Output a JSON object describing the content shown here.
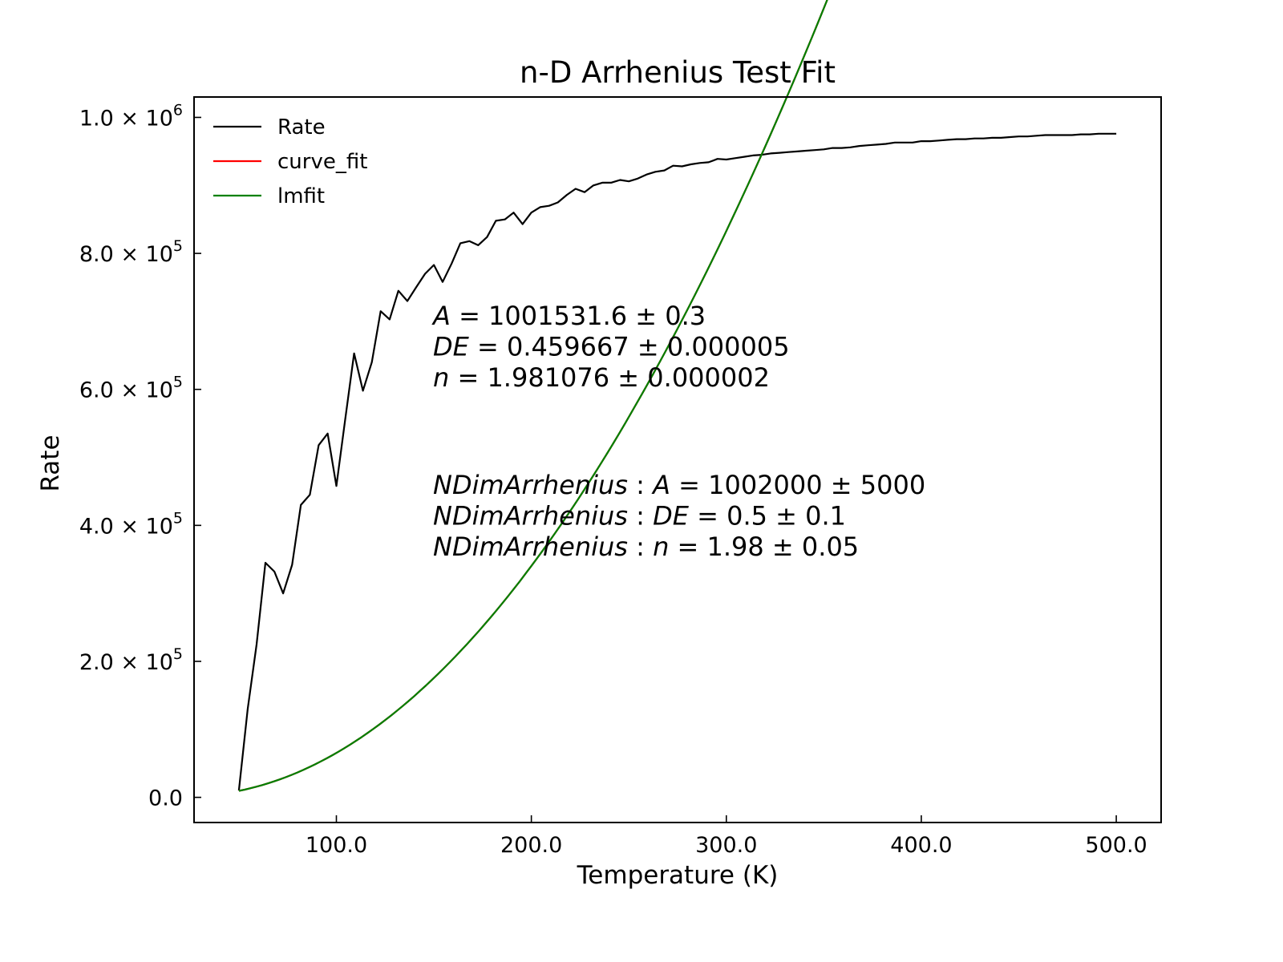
{
  "chart_data": {
    "type": "line",
    "title": "n-D Arrhenius Test Fit",
    "xlabel": "Temperature (K)",
    "ylabel": "Rate",
    "xlim": [
      27,
      523
    ],
    "ylim": [
      -37000,
      1030000
    ],
    "x_ticks": [
      {
        "value": 100,
        "label": "100.0"
      },
      {
        "value": 200,
        "label": "200.0"
      },
      {
        "value": 300,
        "label": "300.0"
      },
      {
        "value": 400,
        "label": "400.0"
      },
      {
        "value": 500,
        "label": "500.0"
      }
    ],
    "y_ticks": [
      {
        "value": 0,
        "mantissa": "0.0",
        "exponent": ""
      },
      {
        "value": 200000,
        "mantissa": "2.0 × 10",
        "exponent": "5"
      },
      {
        "value": 400000,
        "mantissa": "4.0 × 10",
        "exponent": "5"
      },
      {
        "value": 600000,
        "mantissa": "6.0 × 10",
        "exponent": "5"
      },
      {
        "value": 800000,
        "mantissa": "8.0 × 10",
        "exponent": "5"
      },
      {
        "value": 1000000,
        "mantissa": "1.0 × 10",
        "exponent": "6"
      }
    ],
    "grid": false,
    "legend_position": "upper-left",
    "fit_params": {
      "A": 1001531.6,
      "DE": 0.459667,
      "n": 1.981076
    },
    "series": [
      {
        "name": "Rate",
        "color": "#000000",
        "x": [
          50,
          54.5,
          59.1,
          63.6,
          68.2,
          72.7,
          77.3,
          81.8,
          86.4,
          90.9,
          95.5,
          100,
          104.5,
          109.1,
          113.6,
          118.2,
          122.7,
          127.3,
          131.8,
          136.4,
          140.9,
          145.5,
          150,
          154.5,
          159.1,
          163.6,
          168.2,
          172.7,
          177.3,
          181.8,
          186.4,
          190.9,
          195.5,
          200,
          204.5,
          209.1,
          213.6,
          218.2,
          222.7,
          227.3,
          231.8,
          236.4,
          240.9,
          245.5,
          250,
          254.5,
          259.1,
          263.6,
          268.2,
          272.7,
          277.3,
          281.8,
          286.4,
          290.9,
          295.5,
          300,
          304.5,
          309.1,
          313.6,
          318.2,
          322.7,
          327.3,
          331.8,
          336.4,
          340.9,
          345.5,
          350,
          354.5,
          359.1,
          363.6,
          368.2,
          372.7,
          377.3,
          381.8,
          386.4,
          390.9,
          395.5,
          400,
          404.5,
          409.1,
          413.6,
          418.2,
          422.7,
          427.3,
          431.8,
          436.4,
          440.9,
          445.5,
          450,
          454.5,
          459.1,
          463.6,
          468.2,
          472.7,
          477.3,
          481.8,
          486.4,
          490.9,
          495.5,
          500
        ],
        "y": [
          10000,
          130000,
          225000,
          345000,
          332000,
          300000,
          342000,
          430000,
          445000,
          518000,
          535000,
          458000,
          555000,
          653000,
          598000,
          640000,
          715000,
          703000,
          745000,
          730000,
          750000,
          770000,
          783000,
          758000,
          785000,
          815000,
          818000,
          812000,
          824000,
          848000,
          850000,
          860000,
          843000,
          860000,
          868000,
          870000,
          875000,
          886000,
          895000,
          890000,
          900000,
          904000,
          904000,
          908000,
          906000,
          910000,
          916000,
          920000,
          922000,
          929000,
          928000,
          931000,
          933000,
          934000,
          939000,
          938000,
          940000,
          942000,
          944000,
          945000,
          947000,
          948000,
          949000,
          950000,
          951000,
          952000,
          953000,
          955000,
          955000,
          956000,
          958000,
          959000,
          960000,
          961000,
          963000,
          963000,
          963000,
          965000,
          965000,
          966000,
          967000,
          968000,
          968000,
          969000,
          969000,
          970000,
          970000,
          971000,
          972000,
          972000,
          973000,
          974000,
          974000,
          974000,
          974000,
          975000,
          975000,
          976000,
          976000,
          976000
        ]
      },
      {
        "name": "curve_fit",
        "color": "#ff0000",
        "model": {
          "A": 1001531.6,
          "DE": 0.459667,
          "n": 1.981076,
          "x_start": 50,
          "x_end": 500
        }
      },
      {
        "name": "lmfit",
        "color": "#008000",
        "model": {
          "A": 1001531.6,
          "DE": 0.459667,
          "n": 1.981076,
          "x_start": 50,
          "x_end": 500
        }
      }
    ],
    "annotations": {
      "fit_lines": [
        {
          "sym": "A",
          "rest": " = 1001531.6 ± 0.3"
        },
        {
          "sym": "DE",
          "rest": " = 0.459667 ± 0.000005"
        },
        {
          "sym": "n",
          "rest": " = 1.981076 ± 0.000002"
        }
      ],
      "ndim_lines": [
        {
          "prefix": "NDimArrhenius",
          "sym": "A",
          "rest": " = 1002000 ± 5000"
        },
        {
          "prefix": "NDimArrhenius",
          "sym": "DE",
          "rest": " = 0.5 ± 0.1"
        },
        {
          "prefix": "NDimArrhenius",
          "sym": "n",
          "rest": " = 1.98 ± 0.05"
        }
      ]
    }
  }
}
